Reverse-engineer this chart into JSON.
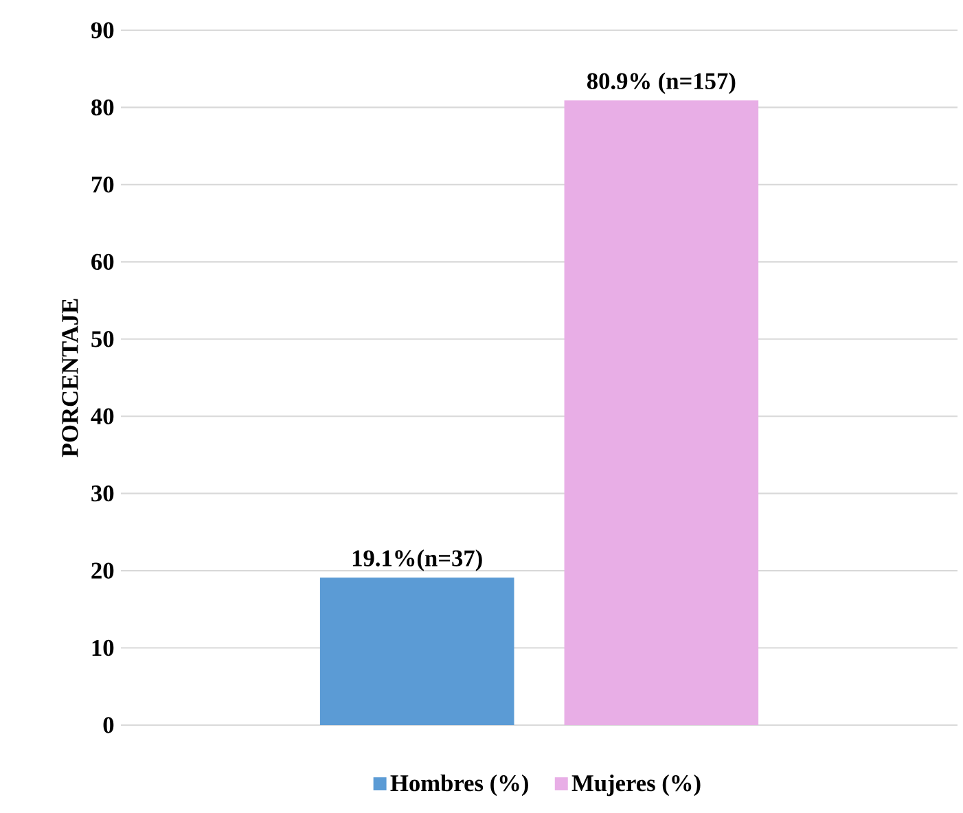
{
  "chart_data": {
    "type": "bar",
    "ylabel": "PORCENTAJE",
    "categories": [
      null
    ],
    "series": [
      {
        "name": "Hombres (%)",
        "color": "#5b9bd5",
        "values": [
          19.1
        ],
        "value_labels": [
          "19.1%(n=37)"
        ]
      },
      {
        "name": "Mujeres (%)",
        "color": "#e8aee6",
        "values": [
          80.9
        ],
        "value_labels": [
          "80.9% (n=157)"
        ]
      }
    ],
    "ylim": [
      0,
      90
    ],
    "yticks": [
      0,
      10,
      20,
      30,
      40,
      50,
      60,
      70,
      80,
      90
    ],
    "grid": "y",
    "legend": "bottom"
  }
}
